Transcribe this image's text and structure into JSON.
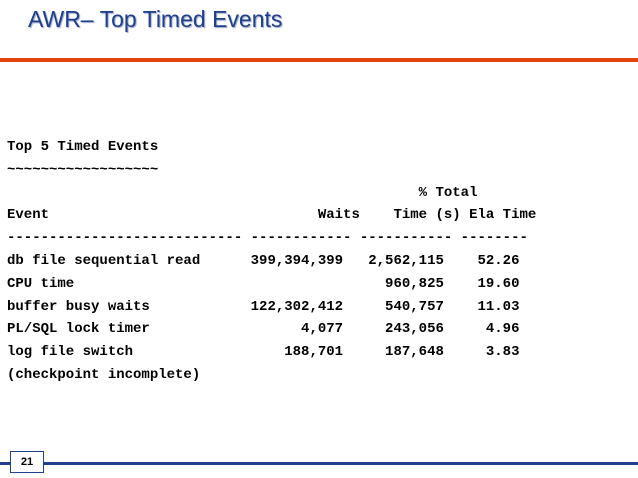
{
  "slide": {
    "title": "AWR– Top Timed Events",
    "page_number": "21",
    "colors": {
      "title": "#1f3f8f",
      "top_rule": "#e0440f",
      "bottom_rule": "#1f3f8f"
    }
  },
  "report": {
    "heading": "Top 5 Timed Events",
    "underline": "~~~~~~~~~~~~~~~~~~",
    "header_line1": "                                                 % Total",
    "header_line2": "Event                                Waits    Time (s) Ela Time",
    "separator": "---------------------------- ------------ ----------- --------",
    "rows": [
      "db file sequential read      399,394,399   2,562,115    52.26",
      "CPU time                                     960,825    19.60",
      "buffer busy waits            122,302,412     540,757    11.03",
      "PL/SQL lock timer                  4,077     243,056     4.96",
      "log file switch                  188,701     187,648     3.83",
      "(checkpoint incomplete)"
    ]
  }
}
